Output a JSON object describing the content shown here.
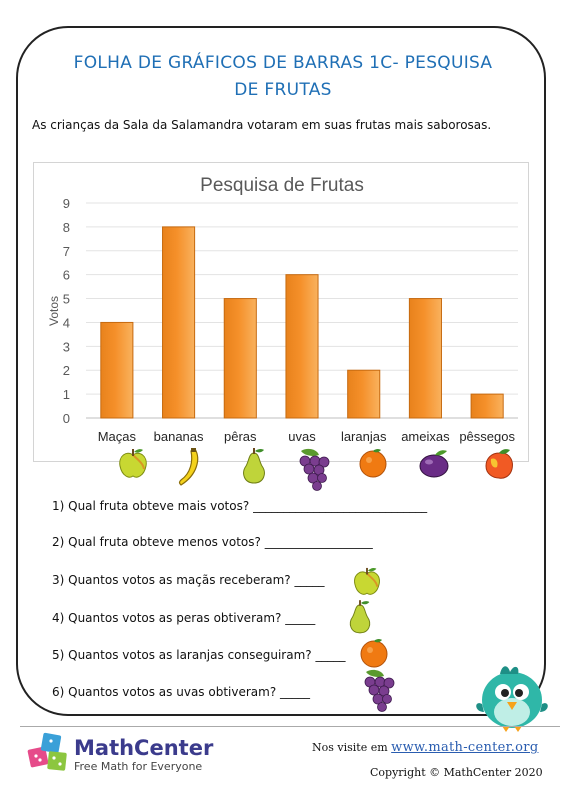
{
  "header": {
    "title_line1": "FOLHA DE GRÁFICOS DE BARRAS 1C- PESQUISA",
    "title_line2": "DE FRUTAS"
  },
  "intro": "As crianças da Sala da Salamandra votaram em suas frutas mais saborosas.",
  "chart_data": {
    "type": "bar",
    "title": "Pesquisa de Frutas",
    "xlabel": "",
    "ylabel": "Votos",
    "categories": [
      "Maças",
      "bananas",
      "pêras",
      "uvas",
      "laranjas",
      "ameixas",
      "pêssegos"
    ],
    "values": [
      4,
      8,
      5,
      6,
      2,
      5,
      1
    ],
    "ylim": [
      0,
      9
    ],
    "yticks": [
      "0",
      "1",
      "2",
      "3",
      "4",
      "5",
      "6",
      "7",
      "8",
      "9"
    ],
    "grid": true,
    "bar_color": "#f5902a"
  },
  "fruit_icons": [
    "apple-icon",
    "banana-icon",
    "pear-icon",
    "grapes-icon",
    "orange-icon",
    "plum-icon",
    "peach-icon"
  ],
  "questions": [
    {
      "text": "1) Qual fruta obteve mais votos?",
      "blank": "_____________________________"
    },
    {
      "text": "2) Qual fruta obteve menos votos?",
      "blank": "__________________"
    },
    {
      "text": "3) Quantos votos as maçãs receberam?",
      "blank": "_____"
    },
    {
      "text": "4) Quantos votos as peras obtiveram?",
      "blank": "_____"
    },
    {
      "text": "5) Quantos votos as laranjas conseguiram?",
      "blank": "_____"
    },
    {
      "text": "6) Quantos votos as uvas obtiveram?",
      "blank": "_____"
    }
  ],
  "footer": {
    "brand": "MathCenter",
    "tagline": "Free Math for Everyone",
    "visit_text": "Nos visite em",
    "url": "www.math-center.org",
    "copyright": "Copyright © MathCenter 2020"
  }
}
